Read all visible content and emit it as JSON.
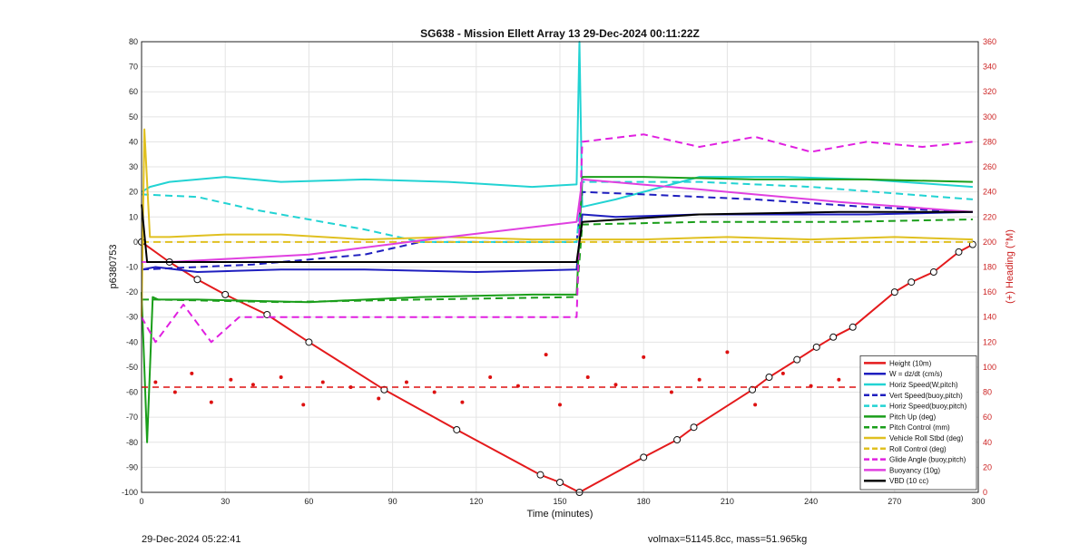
{
  "footer": {
    "left": "29-Dec-2024 05:22:41",
    "right": "volmax=51145.8cc, mass=51.965kg"
  },
  "chart_data": {
    "type": "line",
    "title": "SG638 - Mission Ellett Array 13 29-Dec-2024 00:11:22Z",
    "xlabel": "Time (minutes)",
    "ylabel": "p6380753",
    "y2label": "(+) Heading (°M)",
    "xlim": [
      0,
      300
    ],
    "ylim": [
      -100,
      80
    ],
    "y2lim": [
      0,
      360
    ],
    "xticks": [
      0,
      30,
      60,
      90,
      120,
      150,
      180,
      210,
      240,
      270,
      300
    ],
    "yticks": [
      -100,
      -90,
      -80,
      -70,
      -60,
      -50,
      -40,
      -30,
      -20,
      -10,
      0,
      10,
      20,
      30,
      40,
      50,
      60,
      70,
      80
    ],
    "y2ticks": [
      0,
      20,
      40,
      60,
      80,
      100,
      120,
      140,
      160,
      180,
      200,
      220,
      240,
      260,
      280,
      300,
      320,
      340,
      360
    ],
    "grid": true,
    "legend_position": "bottom-right",
    "colors": {
      "height": "#e41a1c",
      "w": "#1f1fbf",
      "hspeed": "#22d3d3",
      "pitch": "#1a9e1a",
      "roll": "#e0c020",
      "glide": "#e020e0",
      "buoyancy": "#e040e0",
      "vbd": "#000000",
      "heading": "#dd1111",
      "right_axis": "#cc2222"
    },
    "series": [
      {
        "name": "Height (10m)",
        "color": "#e41a1c",
        "style": "solid",
        "axis": "left",
        "markers": true,
        "x": [
          0,
          10,
          20,
          30,
          45,
          60,
          87,
          113,
          143,
          150,
          157,
          180,
          192,
          198,
          219,
          225,
          235,
          242,
          248,
          255,
          270,
          276,
          284,
          293,
          298
        ],
        "y": [
          0,
          -8,
          -15,
          -21,
          -29,
          -40,
          -59,
          -75,
          -93,
          -96,
          -100,
          -86,
          -79,
          -74,
          -59,
          -54,
          -47,
          -42,
          -38,
          -34,
          -20,
          -16,
          -12,
          -4,
          -1
        ]
      },
      {
        "name": "W = dz/dt (cm/s)",
        "color": "#1f1fbf",
        "style": "solid",
        "axis": "left",
        "x": [
          0,
          5,
          20,
          50,
          80,
          120,
          156,
          158,
          170,
          200,
          230,
          260,
          298
        ],
        "y": [
          -11,
          -10,
          -12,
          -11,
          -11,
          -12,
          -11,
          11,
          10,
          11,
          11,
          11,
          12
        ]
      },
      {
        "name": "Horiz Speed(W,pitch)",
        "color": "#22d3d3",
        "style": "solid",
        "axis": "left",
        "x": [
          0,
          3,
          10,
          20,
          30,
          50,
          80,
          110,
          140,
          156,
          157,
          158,
          170,
          200,
          230,
          260,
          298
        ],
        "y": [
          20,
          22,
          24,
          25,
          26,
          24,
          25,
          24,
          22,
          23,
          80,
          14,
          17,
          26,
          26,
          25,
          22
        ]
      },
      {
        "name": "Vert Speed(buoy,pitch)",
        "color": "#1f1fbf",
        "style": "dashed",
        "axis": "left",
        "x": [
          0,
          40,
          80,
          100,
          120,
          156,
          158,
          180,
          220,
          260,
          298
        ],
        "y": [
          -11,
          -9,
          -5,
          0,
          0,
          0,
          20,
          19,
          17,
          14,
          12
        ]
      },
      {
        "name": "Horiz Speed(buoy,pitch)",
        "color": "#22d3d3",
        "style": "dashed",
        "axis": "left",
        "x": [
          0,
          20,
          40,
          60,
          80,
          100,
          156,
          158,
          200,
          240,
          298
        ],
        "y": [
          19,
          18,
          13,
          9,
          5,
          0,
          0,
          24,
          24,
          22,
          17
        ]
      },
      {
        "name": "Pitch Up (deg)",
        "color": "#1a9e1a",
        "style": "solid",
        "axis": "left",
        "x": [
          0,
          2,
          4,
          6,
          20,
          60,
          100,
          140,
          156,
          158,
          180,
          220,
          260,
          298
        ],
        "y": [
          -20,
          -80,
          -22,
          -23,
          -23,
          -24,
          -22,
          -21,
          -21,
          26,
          26,
          25,
          25,
          24
        ]
      },
      {
        "name": "Pitch Control (mm)",
        "color": "#1a9e1a",
        "style": "dashed",
        "axis": "left",
        "x": [
          0,
          5,
          50,
          100,
          156,
          158,
          200,
          250,
          298
        ],
        "y": [
          -23,
          -23,
          -24,
          -23,
          -22,
          7,
          8,
          8,
          9
        ]
      },
      {
        "name": "Vehicle Roll Stbd (deg)",
        "color": "#e0c020",
        "style": "solid",
        "axis": "left",
        "x": [
          0,
          1,
          3,
          10,
          30,
          50,
          80,
          110,
          140,
          156,
          158,
          180,
          210,
          240,
          270,
          298
        ],
        "y": [
          -30,
          45,
          2,
          2,
          3,
          3,
          1,
          2,
          1,
          1,
          1,
          1,
          2,
          1,
          2,
          1
        ]
      },
      {
        "name": "Roll Control (deg)",
        "color": "#e0c020",
        "style": "dashed",
        "axis": "left",
        "x": [
          0,
          5,
          30,
          60,
          90,
          120,
          156,
          158,
          200,
          250,
          298
        ],
        "y": [
          0,
          0,
          0,
          0,
          0,
          0,
          0,
          0,
          0,
          0,
          0
        ]
      },
      {
        "name": "Glide Angle (buoy,pitch)",
        "color": "#e020e0",
        "style": "dashed",
        "axis": "left",
        "x": [
          0,
          5,
          15,
          25,
          35,
          156,
          158,
          180,
          200,
          220,
          240,
          260,
          280,
          298
        ],
        "y": [
          -30,
          -40,
          -25,
          -40,
          -30,
          -30,
          40,
          43,
          38,
          42,
          36,
          40,
          38,
          40
        ]
      },
      {
        "name": "Buoyancy (10g)",
        "color": "#e040e0",
        "style": "solid",
        "axis": "left",
        "x": [
          0,
          10,
          60,
          110,
          156,
          158,
          200,
          250,
          298
        ],
        "y": [
          -8,
          -8,
          -5,
          2,
          8,
          25,
          21,
          16,
          12
        ]
      },
      {
        "name": "VBD (10 cc)",
        "color": "#000000",
        "style": "solid",
        "axis": "left",
        "x": [
          0,
          2,
          50,
          100,
          156,
          158,
          200,
          250,
          298
        ],
        "y": [
          15,
          -8,
          -8,
          -8,
          -8,
          8,
          11,
          12,
          12
        ]
      }
    ],
    "heading": {
      "name": "Heading",
      "axis": "right",
      "color": "#dd1111",
      "style": "dots",
      "mean": 84,
      "x": [
        5,
        12,
        18,
        25,
        32,
        40,
        50,
        58,
        65,
        75,
        85,
        95,
        105,
        115,
        125,
        135,
        145,
        150,
        160,
        170,
        180,
        190,
        200,
        210,
        220,
        230,
        240,
        250,
        260,
        270,
        280,
        290,
        298
      ],
      "y": [
        88,
        80,
        95,
        72,
        90,
        86,
        92,
        70,
        88,
        84,
        75,
        88,
        80,
        72,
        92,
        85,
        110,
        70,
        92,
        86,
        108,
        80,
        90,
        112,
        70,
        95,
        85,
        90,
        78,
        95,
        70,
        88,
        98
      ]
    }
  }
}
